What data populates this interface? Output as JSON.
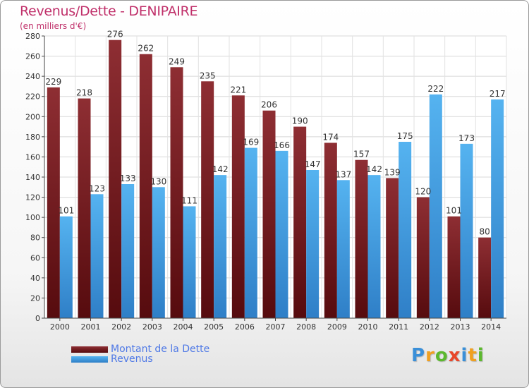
{
  "header": {
    "title": "Revenus/Dette - DENIPAIRE",
    "subtitle": "(en milliers d'€)"
  },
  "chart_data": {
    "type": "bar",
    "categories": [
      "2000",
      "2001",
      "2002",
      "2003",
      "2004",
      "2005",
      "2006",
      "2007",
      "2008",
      "2009",
      "2010",
      "2011",
      "2012",
      "2013",
      "2014"
    ],
    "series": [
      {
        "name": "Montant de la Dette",
        "color": "#7a1e22",
        "values": [
          229,
          218,
          276,
          262,
          249,
          235,
          221,
          206,
          190,
          174,
          157,
          139,
          120,
          101,
          80
        ]
      },
      {
        "name": "Revenus",
        "color": "#4aa5e6",
        "values": [
          101,
          123,
          133,
          130,
          111,
          142,
          169,
          166,
          147,
          137,
          142,
          175,
          222,
          173,
          217
        ]
      }
    ],
    "ylim": [
      0,
      280
    ],
    "yticks": [
      0,
      20,
      40,
      60,
      80,
      100,
      120,
      140,
      160,
      180,
      200,
      220,
      240,
      260,
      280
    ],
    "grid": true,
    "legend": "bottom-left"
  },
  "legend": {
    "items": [
      {
        "label": "Montant de la Dette",
        "color": "#6b1518"
      },
      {
        "label": "Revenus",
        "color": "#3f9de3"
      }
    ]
  },
  "logo": {
    "letters": [
      "P",
      "r",
      "o",
      "x",
      "i",
      "t",
      "i"
    ],
    "colors": [
      "#3a8fd8",
      "#f0a020",
      "#5cb82e",
      "#e8462a",
      "#3a8fd8",
      "#f0a020",
      "#5cb82e"
    ]
  }
}
